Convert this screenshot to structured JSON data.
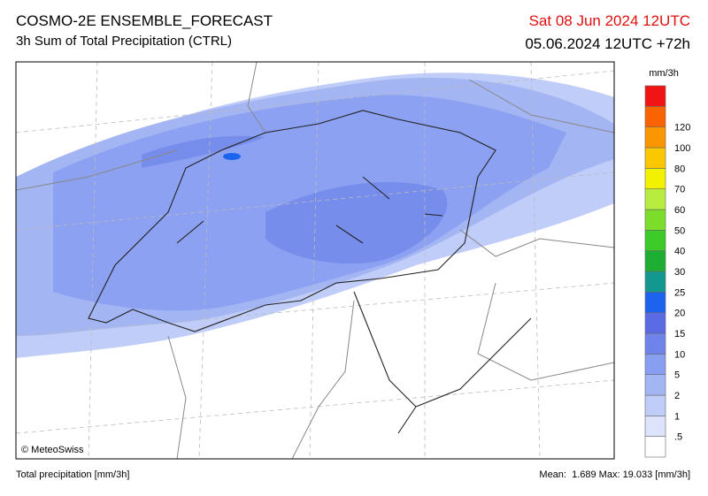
{
  "header": {
    "title": "COSMO-2E ENSEMBLE_FORECAST",
    "subtitle": "3h Sum of Total Precipitation (CTRL)",
    "valid_time": "Sat 08 Jun 2024 12UTC",
    "run_time": "05.06.2024 12UTC +72h"
  },
  "map": {
    "credit": "© MeteoSwiss"
  },
  "legend": {
    "unit": "mm/3h",
    "items": [
      {
        "label": ".5",
        "color": "#ffffff"
      },
      {
        "label": "1",
        "color": "#dce3fb"
      },
      {
        "label": "2",
        "color": "#c0cdf8"
      },
      {
        "label": "5",
        "color": "#a4b5f4"
      },
      {
        "label": "10",
        "color": "#889ef0"
      },
      {
        "label": "15",
        "color": "#6e84ea"
      },
      {
        "label": "20",
        "color": "#5a6be4"
      },
      {
        "label": "25",
        "color": "#1c64ee"
      },
      {
        "label": "30",
        "color": "#139890"
      },
      {
        "label": "40",
        "color": "#1fae34"
      },
      {
        "label": "50",
        "color": "#3ccb29"
      },
      {
        "label": "60",
        "color": "#7cde2b"
      },
      {
        "label": "70",
        "color": "#b8ec3e"
      },
      {
        "label": "80",
        "color": "#f2f200"
      },
      {
        "label": "100",
        "color": "#fac800"
      },
      {
        "label": "120",
        "color": "#fa9600"
      },
      {
        "label": null,
        "color": "#fa6400"
      },
      {
        "label": null,
        "color": "#f01414"
      }
    ]
  },
  "footer": {
    "left": "Total precipitation [mm/3h]",
    "right": "Mean:  1.689 Max: 19.033 [mm/3h]"
  }
}
